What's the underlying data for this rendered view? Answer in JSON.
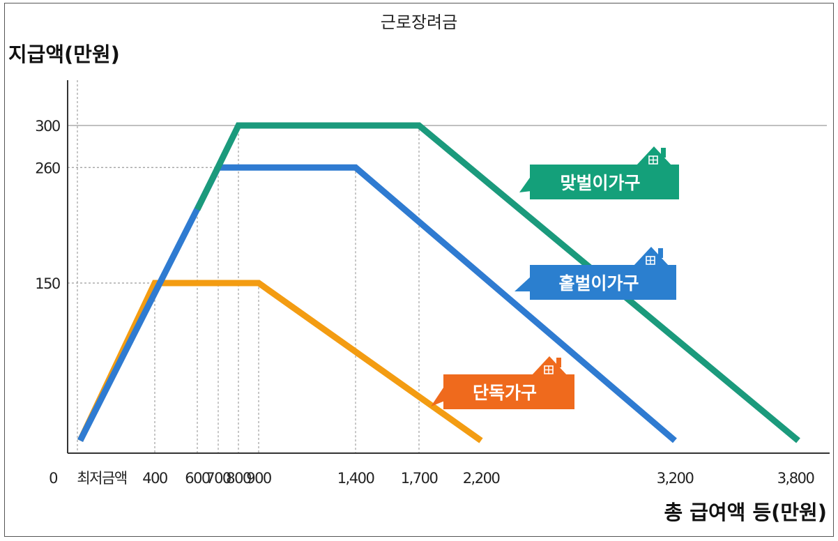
{
  "chart_data": {
    "type": "line",
    "title": "근로장려금",
    "ylabel": "지급액(만원)",
    "xlabel": "총 급여액 등(만원)",
    "origin_label": "0",
    "min_wage_label": "최저금액",
    "x_ticks": [
      400,
      600,
      700,
      800,
      900,
      1400,
      1700,
      2200,
      3200,
      3800
    ],
    "x_tick_labels": [
      "400",
      "600",
      "700",
      "800",
      "900",
      "1,400",
      "1,700",
      "2,200",
      "3,200",
      "3,800"
    ],
    "y_ticks": [
      150,
      260,
      300
    ],
    "y_tick_labels": [
      "150",
      "260",
      "300"
    ],
    "xlim": [
      0,
      3800
    ],
    "ylim": [
      0,
      300
    ],
    "grid": "dashed guides at tick values",
    "series": [
      {
        "name": "맞벌이가구",
        "color": "#1b9a7c",
        "x": [
          600,
          800,
          1700,
          3800
        ],
        "y": [
          220,
          300,
          300,
          0
        ]
      },
      {
        "name": "홑벌이가구",
        "color": "#2f7bd1",
        "x": [
          0,
          700,
          1400,
          3200
        ],
        "y": [
          0,
          260,
          260,
          0
        ]
      },
      {
        "name": "단독가구",
        "color": "#f39c12",
        "x": [
          0,
          400,
          900,
          2200
        ],
        "y": [
          0,
          150,
          150,
          0
        ]
      }
    ],
    "callout_colors": {
      "맞벌이가구": "#14a07a",
      "홑벌이가구": "#2b7fcf",
      "단독가구": "#ef6a1d"
    }
  }
}
